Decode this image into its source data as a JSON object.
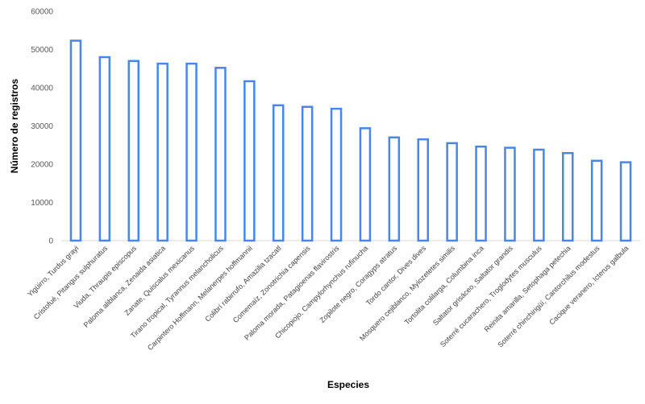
{
  "chart_data": {
    "type": "bar",
    "title": "",
    "xlabel": "Especies",
    "ylabel": "Número de registros",
    "ylim": [
      0,
      60000
    ],
    "yticks": [
      0,
      10000,
      20000,
      30000,
      40000,
      50000,
      60000
    ],
    "grid": false,
    "legend": "none",
    "categories": [
      "Yigüirro, Turdus grayi",
      "Cristofué, Pitangus sulphuratus",
      "Viuda, Thraupis episcopus",
      "Paloma aliblanca, Zenaida asiatica",
      "Zanate, Quiscalus mexicanus",
      "Tirano tropical, Tyrannus melancholicus",
      "Carpintero Hoffmann, Melanerpes hoffmannii",
      "Colibrí rabirrufo, Amazilia tzacatl",
      "Comemaíz, Zonotrichia capensis",
      "Paloma morada, Patagioenas flavirostris",
      "Chicopiojo, Campylorhynchus rufinucha",
      "Zopilote negro, Coragyps atratus",
      "Tordo cantor, Dives dives",
      "Mosquero cejiblanco, Myiozetetes similis",
      "Tortolita colilarga, Columbina inca",
      "Saltator grisáceo, Saltator grandis",
      "Soterré cucarachero, Troglodytes musculus",
      "Reinita amarilla, Setophaga petechia",
      "Soterré chinchirigüí, Cantorchilus modestus",
      "Cacique veranero, Icterus galbula"
    ],
    "values": [
      52300,
      48000,
      47000,
      46300,
      46300,
      45200,
      41700,
      35400,
      35000,
      34500,
      29400,
      27000,
      26500,
      25500,
      24600,
      24300,
      23800,
      22900,
      20900,
      20500
    ],
    "colors": {
      "bar_border": "#4a86e8",
      "bar_fill": "#ffffff",
      "text": "#404040"
    }
  }
}
